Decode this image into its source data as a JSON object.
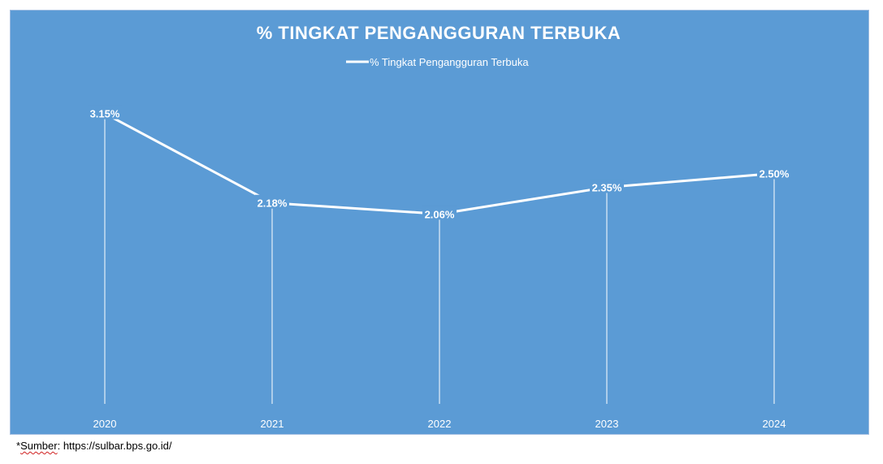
{
  "chart_data": {
    "type": "line",
    "title": "% TINGKAT PENGANGGURAN TERBUKA",
    "legend_position": "top",
    "categories": [
      "2020",
      "2021",
      "2022",
      "2023",
      "2024"
    ],
    "series": [
      {
        "name": "% Tingkat Pengangguran Terbuka",
        "values": [
          3.15,
          2.18,
          2.06,
          2.35,
          2.5
        ],
        "labels": [
          "3.15%",
          "2.18%",
          "2.06%",
          "2.35%",
          "2.50%"
        ]
      }
    ],
    "ylim": [
      0,
      3.5
    ],
    "grid": false,
    "drop_lines": true,
    "colors": {
      "background": "#5b9bd5",
      "line": "#ffffff",
      "text": "#ffffff"
    }
  },
  "source": {
    "prefix": "*",
    "word": "Sumber",
    "rest": ": https://sulbar.bps.go.id/"
  }
}
